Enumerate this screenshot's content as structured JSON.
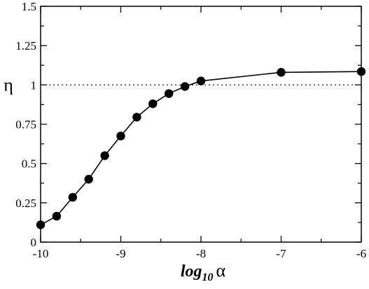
{
  "chart_data": {
    "type": "line",
    "title": "",
    "xlabel": {
      "base": "log",
      "subscript": "10",
      "symbol": "α"
    },
    "ylabel": "η",
    "xlim": [
      -10,
      -6
    ],
    "ylim": [
      0,
      1.5
    ],
    "xticks": [
      -10,
      -9,
      -8,
      -7,
      -6
    ],
    "xtick_labels": [
      "-10",
      "-9",
      "-8",
      "-7",
      "-6"
    ],
    "yticks": [
      0,
      0.25,
      0.5,
      0.75,
      1,
      1.25,
      1.5
    ],
    "ytick_labels": [
      "0",
      "0.25",
      "0.5",
      "0.75",
      "1",
      "1.25",
      "1.5"
    ],
    "grid": false,
    "legend": "none",
    "reference_line": {
      "y": 1,
      "style": "dotted",
      "color": "#000000"
    },
    "series": [
      {
        "marker": "filled-circle",
        "color": "#000000",
        "x": [
          -10,
          -9.8,
          -9.6,
          -9.4,
          -9.2,
          -9.0,
          -8.8,
          -8.6,
          -8.4,
          -8.2,
          -8.0,
          -7.0,
          -6.0
        ],
        "y": [
          0.11,
          0.165,
          0.285,
          0.4,
          0.55,
          0.675,
          0.795,
          0.88,
          0.945,
          0.99,
          1.025,
          1.08,
          1.085
        ]
      }
    ]
  }
}
